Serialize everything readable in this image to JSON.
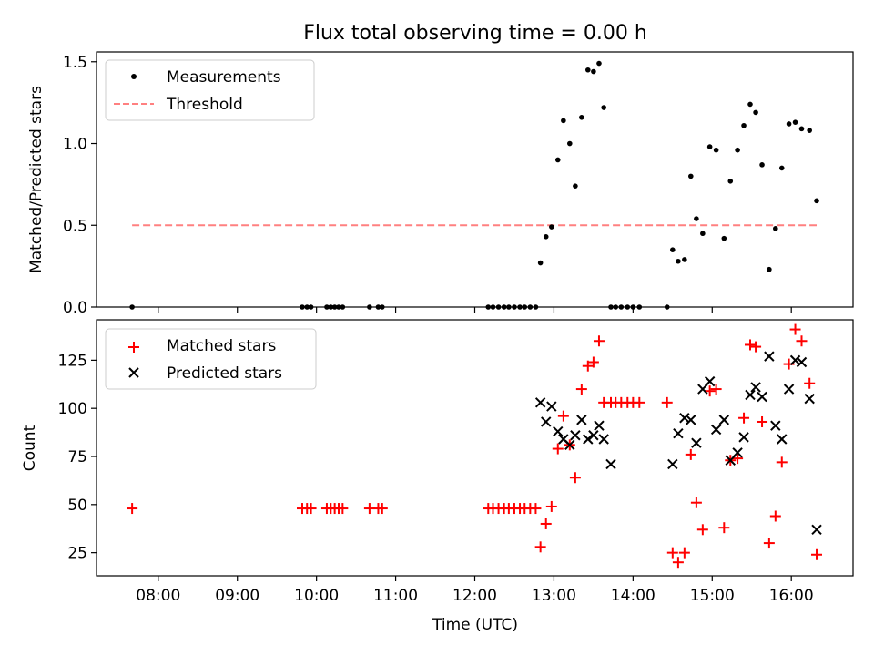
{
  "figure": {
    "title": "Flux total observing time = 0.00 h",
    "xlabel": "Time (UTC)",
    "xticks": [
      "08:00",
      "09:00",
      "10:00",
      "11:00",
      "12:00",
      "13:00",
      "14:00",
      "15:00",
      "16:00"
    ]
  },
  "chart_data": [
    {
      "type": "scatter",
      "title": "Flux total observing time = 0.00 h",
      "xlabel": "",
      "ylabel": "Matched/Predicted stars",
      "xlim": [
        7.22,
        16.78
      ],
      "ylim": [
        0,
        1.56
      ],
      "yticks": [
        "0.0",
        "0.5",
        "1.0",
        "1.5"
      ],
      "legend_position": "upper-left",
      "colors": {
        "measurements": "#000000",
        "threshold": "#ff8080"
      },
      "series": [
        {
          "name": "Measurements",
          "kind": "points",
          "x": [
            7.67,
            9.82,
            9.88,
            9.93,
            10.13,
            10.18,
            10.23,
            10.28,
            10.33,
            10.67,
            10.78,
            10.83,
            12.17,
            12.23,
            12.3,
            12.37,
            12.43,
            12.5,
            12.57,
            12.63,
            12.7,
            12.77,
            12.83,
            12.9,
            12.97,
            13.05,
            13.12,
            13.2,
            13.27,
            13.35,
            13.43,
            13.5,
            13.57,
            13.63,
            13.72,
            13.78,
            13.85,
            13.93,
            14.0,
            14.08,
            14.43,
            14.5,
            14.57,
            14.65,
            14.73,
            14.8,
            14.88,
            14.97,
            15.05,
            15.15,
            15.23,
            15.32,
            15.4,
            15.48,
            15.55,
            15.63,
            15.72,
            15.8,
            15.88,
            15.97,
            16.05,
            16.13,
            16.23,
            16.32
          ],
          "y": [
            0.0,
            0.0,
            0.0,
            0.0,
            0.0,
            0.0,
            0.0,
            0.0,
            0.0,
            0.0,
            0.0,
            0.0,
            0.0,
            0.0,
            0.0,
            0.0,
            0.0,
            0.0,
            0.0,
            0.0,
            0.0,
            0.0,
            0.27,
            0.43,
            0.49,
            0.9,
            1.14,
            1.0,
            0.74,
            1.16,
            1.45,
            1.44,
            1.49,
            1.22,
            0.0,
            0.0,
            0.0,
            0.0,
            0.0,
            0.0,
            0.0,
            0.35,
            0.28,
            0.29,
            0.8,
            0.54,
            0.45,
            0.98,
            0.96,
            0.42,
            0.77,
            0.96,
            1.11,
            1.24,
            1.19,
            0.87,
            0.23,
            0.48,
            0.85,
            1.12,
            1.13,
            1.09,
            1.08,
            0.65
          ]
        },
        {
          "name": "Threshold",
          "kind": "dashed-line",
          "x": [
            7.67,
            16.32
          ],
          "y": [
            0.5,
            0.5
          ]
        }
      ]
    },
    {
      "type": "scatter",
      "title": "",
      "xlabel": "Time (UTC)",
      "ylabel": "Count",
      "xlim": [
        7.22,
        16.78
      ],
      "ylim": [
        13,
        146
      ],
      "yticks": [
        "25",
        "50",
        "75",
        "100",
        "125"
      ],
      "legend_position": "upper-left",
      "colors": {
        "matched": "#ff0000",
        "predicted": "#000000"
      },
      "series": [
        {
          "name": "Matched stars",
          "marker": "plus",
          "x": [
            7.67,
            9.82,
            9.88,
            9.93,
            10.13,
            10.18,
            10.23,
            10.28,
            10.33,
            10.67,
            10.78,
            10.83,
            12.17,
            12.23,
            12.3,
            12.37,
            12.43,
            12.5,
            12.57,
            12.63,
            12.7,
            12.77,
            12.83,
            12.9,
            12.97,
            13.05,
            13.12,
            13.2,
            13.27,
            13.35,
            13.43,
            13.5,
            13.57,
            13.63,
            13.72,
            13.78,
            13.85,
            13.93,
            14.0,
            14.08,
            14.43,
            14.5,
            14.57,
            14.65,
            14.73,
            14.8,
            14.88,
            14.97,
            15.05,
            15.15,
            15.23,
            15.32,
            15.4,
            15.48,
            15.55,
            15.63,
            15.72,
            15.8,
            15.88,
            15.97,
            16.05,
            16.13,
            16.23,
            16.32
          ],
          "y": [
            48,
            48,
            48,
            48,
            48,
            48,
            48,
            48,
            48,
            48,
            48,
            48,
            48,
            48,
            48,
            48,
            48,
            48,
            48,
            48,
            48,
            48,
            28,
            40,
            49,
            79,
            96,
            81,
            64,
            110,
            122,
            124,
            135,
            103,
            103,
            103,
            103,
            103,
            103,
            103,
            103,
            25,
            20,
            25,
            76,
            51,
            37,
            109,
            110,
            38,
            73,
            74,
            95,
            133,
            132,
            93,
            30,
            44,
            72,
            123,
            141,
            135,
            113,
            24
          ]
        },
        {
          "name": "Predicted stars",
          "marker": "x",
          "x": [
            12.83,
            12.9,
            12.97,
            13.05,
            13.12,
            13.2,
            13.27,
            13.35,
            13.43,
            13.5,
            13.57,
            13.63,
            13.72,
            14.5,
            14.57,
            14.65,
            14.73,
            14.8,
            14.88,
            14.97,
            15.05,
            15.15,
            15.23,
            15.32,
            15.4,
            15.48,
            15.55,
            15.63,
            15.72,
            15.8,
            15.88,
            15.97,
            16.05,
            16.13,
            16.23,
            16.32
          ],
          "y": [
            103,
            93,
            101,
            88,
            84,
            81,
            86,
            94,
            84,
            86,
            91,
            84,
            71,
            71,
            87,
            95,
            94,
            82,
            110,
            114,
            89,
            94,
            73,
            77,
            85,
            107,
            111,
            106,
            127,
            91,
            84,
            110,
            125,
            124,
            105,
            37
          ]
        }
      ]
    }
  ]
}
